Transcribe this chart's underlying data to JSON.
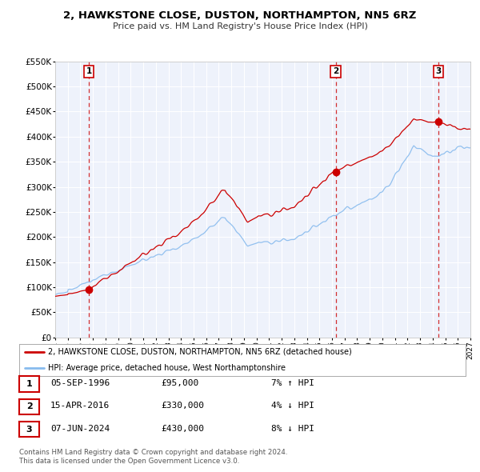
{
  "title": "2, HAWKSTONE CLOSE, DUSTON, NORTHAMPTON, NN5 6RZ",
  "subtitle": "Price paid vs. HM Land Registry's House Price Index (HPI)",
  "ylim": [
    0,
    550000
  ],
  "yticks": [
    0,
    50000,
    100000,
    150000,
    200000,
    250000,
    300000,
    350000,
    400000,
    450000,
    500000,
    550000
  ],
  "ytick_labels": [
    "£0",
    "£50K",
    "£100K",
    "£150K",
    "£200K",
    "£250K",
    "£300K",
    "£350K",
    "£400K",
    "£450K",
    "£500K",
    "£550K"
  ],
  "xlim_start": 1994.0,
  "xlim_end": 2027.0,
  "background_color": "#ffffff",
  "plot_bg_color": "#eef2fb",
  "grid_color": "#ffffff",
  "sale_color": "#cc0000",
  "hpi_color": "#88bbee",
  "sale_label": "2, HAWKSTONE CLOSE, DUSTON, NORTHAMPTON, NN5 6RZ (detached house)",
  "hpi_label": "HPI: Average price, detached house, West Northamptonshire",
  "sales": [
    {
      "date": 1996.67,
      "price": 95000,
      "label": "1"
    },
    {
      "date": 2016.29,
      "price": 330000,
      "label": "2"
    },
    {
      "date": 2024.44,
      "price": 430000,
      "label": "3"
    }
  ],
  "sale_vlines": [
    1996.67,
    2016.29,
    2024.44
  ],
  "table_rows": [
    {
      "num": "1",
      "date": "05-SEP-1996",
      "price": "£95,000",
      "hpi": "7% ↑ HPI"
    },
    {
      "num": "2",
      "date": "15-APR-2016",
      "price": "£330,000",
      "hpi": "4% ↓ HPI"
    },
    {
      "num": "3",
      "date": "07-JUN-2024",
      "price": "£430,000",
      "hpi": "8% ↓ HPI"
    }
  ],
  "footer": "Contains HM Land Registry data © Crown copyright and database right 2024.\nThis data is licensed under the Open Government Licence v3.0.",
  "xtick_years": [
    1994,
    1995,
    1996,
    1997,
    1998,
    1999,
    2000,
    2001,
    2002,
    2003,
    2004,
    2005,
    2006,
    2007,
    2008,
    2009,
    2010,
    2011,
    2012,
    2013,
    2014,
    2015,
    2016,
    2017,
    2018,
    2019,
    2020,
    2021,
    2022,
    2023,
    2024,
    2025,
    2026,
    2027
  ]
}
